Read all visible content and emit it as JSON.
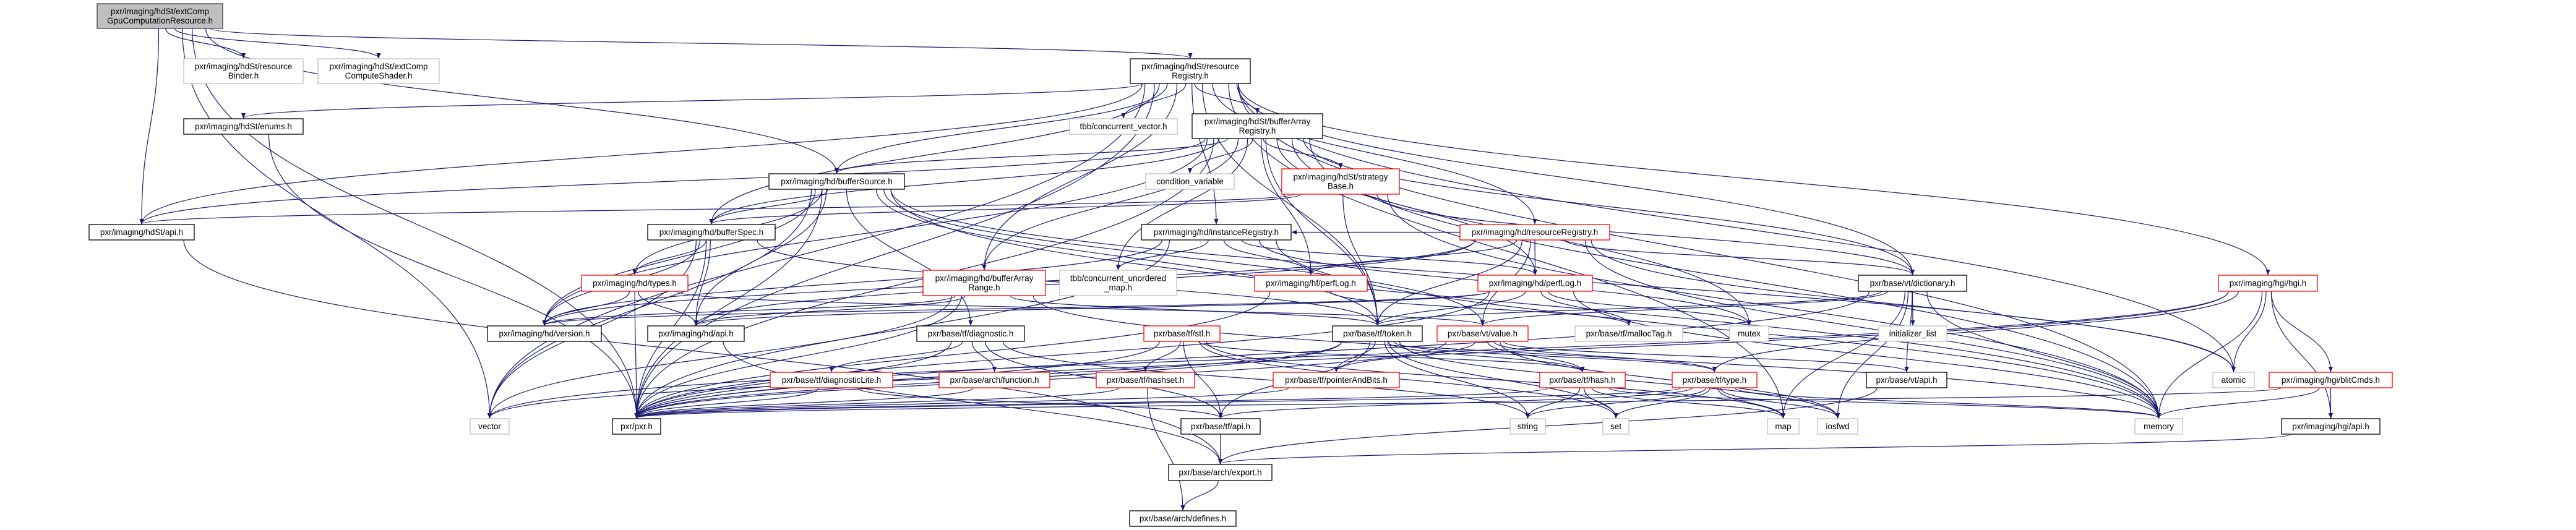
{
  "colors": {
    "edge": "#191970",
    "main_fill": "#bfbfbf",
    "main_border": "#404040",
    "documented_border": "#000000",
    "truncated_border": "#ff0000",
    "undocumented_border": "#bfbfbf"
  },
  "nodes": [
    {
      "id": "main",
      "lines": [
        "pxr/imaging/hdSt/extComp",
        "GpuComputationResource.h"
      ],
      "kind": "main"
    },
    {
      "id": "resourceBinder",
      "lines": [
        "pxr/imaging/hdSt/resource",
        "Binder.h"
      ],
      "kind": "undocumented"
    },
    {
      "id": "extCompComputeShader",
      "lines": [
        "pxr/imaging/hdSt/extComp",
        "ComputeShader.h"
      ],
      "kind": "undocumented"
    },
    {
      "id": "hdSt_resourceRegistry",
      "lines": [
        "pxr/imaging/hdSt/resource",
        "Registry.h"
      ],
      "kind": "documented"
    },
    {
      "id": "hdSt_enums",
      "lines": [
        "pxr/imaging/hdSt/enums.h"
      ],
      "kind": "documented"
    },
    {
      "id": "tbb_cv",
      "lines": [
        "tbb/concurrent_vector.h"
      ],
      "kind": "undocumented"
    },
    {
      "id": "bufferArrayRegistry",
      "lines": [
        "pxr/imaging/hdSt/bufferArray",
        "Registry.h"
      ],
      "kind": "documented"
    },
    {
      "id": "bufferSource",
      "lines": [
        "pxr/imaging/hd/bufferSource.h"
      ],
      "kind": "documented"
    },
    {
      "id": "condition_variable",
      "lines": [
        "condition_variable"
      ],
      "kind": "undocumented"
    },
    {
      "id": "strategyBase",
      "lines": [
        "pxr/imaging/hdSt/strategy",
        "Base.h"
      ],
      "kind": "truncated"
    },
    {
      "id": "hdSt_api",
      "lines": [
        "pxr/imaging/hdSt/api.h"
      ],
      "kind": "documented"
    },
    {
      "id": "bufferSpec",
      "lines": [
        "pxr/imaging/hd/bufferSpec.h"
      ],
      "kind": "documented"
    },
    {
      "id": "instanceRegistry",
      "lines": [
        "pxr/imaging/hd/instanceRegistry.h"
      ],
      "kind": "documented"
    },
    {
      "id": "hd_resourceRegistry",
      "lines": [
        "pxr/imaging/hd/resourceRegistry.h"
      ],
      "kind": "truncated"
    },
    {
      "id": "types",
      "lines": [
        "pxr/imaging/hd/types.h"
      ],
      "kind": "truncated"
    },
    {
      "id": "bufferArrayRange",
      "lines": [
        "pxr/imaging/hd/bufferArray",
        "Range.h"
      ],
      "kind": "truncated"
    },
    {
      "id": "tbb_cum",
      "lines": [
        "tbb/concurrent_unordered",
        "_map.h"
      ],
      "kind": "undocumented"
    },
    {
      "id": "hf_perfLog",
      "lines": [
        "pxr/imaging/hf/perfLog.h"
      ],
      "kind": "truncated"
    },
    {
      "id": "hd_perfLog",
      "lines": [
        "pxr/imaging/hd/perfLog.h"
      ],
      "kind": "truncated"
    },
    {
      "id": "vt_dictionary",
      "lines": [
        "pxr/base/vt/dictionary.h"
      ],
      "kind": "documented"
    },
    {
      "id": "hgi",
      "lines": [
        "pxr/imaging/hgi/hgi.h"
      ],
      "kind": "truncated"
    },
    {
      "id": "hd_version",
      "lines": [
        "pxr/imaging/hd/version.h"
      ],
      "kind": "documented"
    },
    {
      "id": "hd_api",
      "lines": [
        "pxr/imaging/hd/api.h"
      ],
      "kind": "documented"
    },
    {
      "id": "diagnostic",
      "lines": [
        "pxr/base/tf/diagnostic.h"
      ],
      "kind": "documented"
    },
    {
      "id": "stl",
      "lines": [
        "pxr/base/tf/stl.h"
      ],
      "kind": "truncated"
    },
    {
      "id": "token",
      "lines": [
        "pxr/base/tf/token.h"
      ],
      "kind": "documented"
    },
    {
      "id": "vt_value",
      "lines": [
        "pxr/base/vt/value.h"
      ],
      "kind": "truncated"
    },
    {
      "id": "mallocTag",
      "lines": [
        "pxr/base/tf/mallocTag.h"
      ],
      "kind": "undocumented"
    },
    {
      "id": "mutex",
      "lines": [
        "mutex"
      ],
      "kind": "undocumented"
    },
    {
      "id": "initializer_list",
      "lines": [
        "initializer_list"
      ],
      "kind": "undocumented"
    },
    {
      "id": "diagnosticLite",
      "lines": [
        "pxr/base/tf/diagnosticLite.h"
      ],
      "kind": "truncated"
    },
    {
      "id": "function",
      "lines": [
        "pxr/base/arch/function.h"
      ],
      "kind": "truncated"
    },
    {
      "id": "hashset",
      "lines": [
        "pxr/base/tf/hashset.h"
      ],
      "kind": "truncated"
    },
    {
      "id": "pointerAndBits",
      "lines": [
        "pxr/base/tf/pointerAndBits.h"
      ],
      "kind": "truncated"
    },
    {
      "id": "hash",
      "lines": [
        "pxr/base/tf/hash.h"
      ],
      "kind": "truncated"
    },
    {
      "id": "type",
      "lines": [
        "pxr/base/tf/type.h"
      ],
      "kind": "truncated"
    },
    {
      "id": "vt_api",
      "lines": [
        "pxr/base/vt/api.h"
      ],
      "kind": "documented"
    },
    {
      "id": "atomic",
      "lines": [
        "atomic"
      ],
      "kind": "undocumented"
    },
    {
      "id": "blitCmds",
      "lines": [
        "pxr/imaging/hgi/blitCmds.h"
      ],
      "kind": "truncated"
    },
    {
      "id": "vector",
      "lines": [
        "vector"
      ],
      "kind": "undocumented"
    },
    {
      "id": "pxr",
      "lines": [
        "pxr/pxr.h"
      ],
      "kind": "documented"
    },
    {
      "id": "tf_api",
      "lines": [
        "pxr/base/tf/api.h"
      ],
      "kind": "documented"
    },
    {
      "id": "string",
      "lines": [
        "string"
      ],
      "kind": "undocumented"
    },
    {
      "id": "set",
      "lines": [
        "set"
      ],
      "kind": "undocumented"
    },
    {
      "id": "map",
      "lines": [
        "map"
      ],
      "kind": "undocumented"
    },
    {
      "id": "iosfwd",
      "lines": [
        "iosfwd"
      ],
      "kind": "undocumented"
    },
    {
      "id": "memory",
      "lines": [
        "memory"
      ],
      "kind": "undocumented"
    },
    {
      "id": "hgi_api",
      "lines": [
        "pxr/imaging/hgi/api.h"
      ],
      "kind": "documented"
    },
    {
      "id": "export",
      "lines": [
        "pxr/base/arch/export.h"
      ],
      "kind": "documented"
    },
    {
      "id": "defines",
      "lines": [
        "pxr/base/arch/defines.h"
      ],
      "kind": "documented"
    }
  ],
  "edges": [
    [
      "main",
      "resourceBinder"
    ],
    [
      "main",
      "extCompComputeShader"
    ],
    [
      "main",
      "hdSt_resourceRegistry"
    ],
    [
      "main",
      "hdSt_api"
    ],
    [
      "main",
      "vector"
    ],
    [
      "main",
      "pxr"
    ],
    [
      "main",
      "bufferSource"
    ],
    [
      "hdSt_resourceRegistry",
      "hdSt_api"
    ],
    [
      "hdSt_resourceRegistry",
      "hdSt_enums"
    ],
    [
      "hdSt_resourceRegistry",
      "tbb_cv"
    ],
    [
      "hdSt_resourceRegistry",
      "bufferArrayRegistry"
    ],
    [
      "hdSt_resourceRegistry",
      "bufferSource"
    ],
    [
      "hdSt_resourceRegistry",
      "bufferSpec"
    ],
    [
      "hdSt_resourceRegistry",
      "bufferArrayRange"
    ],
    [
      "hdSt_resourceRegistry",
      "instanceRegistry"
    ],
    [
      "hdSt_resourceRegistry",
      "hd_resourceRegistry"
    ],
    [
      "hdSt_resourceRegistry",
      "vt_dictionary"
    ],
    [
      "hdSt_resourceRegistry",
      "hgi"
    ],
    [
      "hdSt_resourceRegistry",
      "atomic"
    ],
    [
      "hdSt_resourceRegistry",
      "memory"
    ],
    [
      "hdSt_resourceRegistry",
      "map"
    ],
    [
      "hdSt_resourceRegistry",
      "pxr"
    ],
    [
      "hdSt_resourceRegistry",
      "vector"
    ],
    [
      "hdSt_resourceRegistry",
      "token"
    ],
    [
      "bufferArrayRegistry",
      "hdSt_api"
    ],
    [
      "bufferArrayRegistry",
      "strategyBase"
    ],
    [
      "bufferArrayRegistry",
      "condition_variable"
    ],
    [
      "bufferArrayRegistry",
      "bufferArrayRange"
    ],
    [
      "bufferArrayRegistry",
      "bufferSpec"
    ],
    [
      "bufferArrayRegistry",
      "bufferSource"
    ],
    [
      "bufferArrayRegistry",
      "hd_perfLog"
    ],
    [
      "bufferArrayRegistry",
      "hf_perfLog"
    ],
    [
      "bufferArrayRegistry",
      "token"
    ],
    [
      "bufferArrayRegistry",
      "vt_dictionary"
    ],
    [
      "bufferArrayRegistry",
      "mutex"
    ],
    [
      "bufferArrayRegistry",
      "tbb_cum"
    ],
    [
      "bufferArrayRegistry",
      "memory"
    ],
    [
      "bufferArrayRegistry",
      "pxr"
    ],
    [
      "bufferArrayRegistry",
      "hd_version"
    ],
    [
      "strategyBase",
      "hdSt_api"
    ],
    [
      "strategyBase",
      "bufferSpec"
    ],
    [
      "strategyBase",
      "token"
    ],
    [
      "strategyBase",
      "vt_dictionary"
    ],
    [
      "strategyBase",
      "memory"
    ],
    [
      "bufferSource",
      "hd_api"
    ],
    [
      "bufferSource",
      "hd_version"
    ],
    [
      "bufferSource",
      "bufferSpec"
    ],
    [
      "bufferSource",
      "types"
    ],
    [
      "bufferSource",
      "diagnostic"
    ],
    [
      "bufferSource",
      "token"
    ],
    [
      "bufferSource",
      "vt_value"
    ],
    [
      "bufferSource",
      "pxr"
    ],
    [
      "bufferSource",
      "vector"
    ],
    [
      "bufferSource",
      "memory"
    ],
    [
      "bufferSource",
      "atomic"
    ],
    [
      "bufferSpec",
      "hd_api"
    ],
    [
      "bufferSpec",
      "hd_version"
    ],
    [
      "bufferSpec",
      "types"
    ],
    [
      "bufferSpec",
      "token"
    ],
    [
      "bufferSpec",
      "pxr"
    ],
    [
      "bufferSpec",
      "vector"
    ],
    [
      "types",
      "hd_api"
    ],
    [
      "types",
      "hd_version"
    ],
    [
      "types",
      "pxr"
    ],
    [
      "types",
      "vt_value"
    ],
    [
      "hdSt_enums",
      "pxr"
    ],
    [
      "hdSt_api",
      "export"
    ],
    [
      "instanceRegistry",
      "hd_version"
    ],
    [
      "instanceRegistry",
      "hd_perfLog"
    ],
    [
      "instanceRegistry",
      "hf_perfLog"
    ],
    [
      "instanceRegistry",
      "tbb_cum"
    ],
    [
      "instanceRegistry",
      "pxr"
    ],
    [
      "instanceRegistry",
      "memory"
    ],
    [
      "instanceRegistry",
      "mutex"
    ],
    [
      "hd_resourceRegistry",
      "hd_api"
    ],
    [
      "hd_resourceRegistry",
      "hd_version"
    ],
    [
      "hd_resourceRegistry",
      "hd_perfLog"
    ],
    [
      "hd_resourceRegistry",
      "hf_perfLog"
    ],
    [
      "hd_resourceRegistry",
      "instanceRegistry"
    ],
    [
      "hd_resourceRegistry",
      "token"
    ],
    [
      "hd_resourceRegistry",
      "vt_value"
    ],
    [
      "hd_resourceRegistry",
      "vt_dictionary"
    ],
    [
      "hd_resourceRegistry",
      "memory"
    ],
    [
      "hd_resourceRegistry",
      "atomic"
    ],
    [
      "hf_perfLog",
      "mallocTag"
    ],
    [
      "hf_perfLog",
      "pxr"
    ],
    [
      "hd_perfLog",
      "hd_api"
    ],
    [
      "hd_perfLog",
      "hd_version"
    ],
    [
      "hd_perfLog",
      "token"
    ],
    [
      "hd_perfLog",
      "mallocTag"
    ],
    [
      "hd_perfLog",
      "mutex"
    ],
    [
      "hd_perfLog",
      "pxr"
    ],
    [
      "hd_perfLog",
      "memory"
    ],
    [
      "bufferArrayRange",
      "hd_api"
    ],
    [
      "bufferArrayRange",
      "hd_version"
    ],
    [
      "bufferArrayRange",
      "pxr"
    ],
    [
      "bufferArrayRange",
      "vector"
    ],
    [
      "bufferArrayRange",
      "memory"
    ],
    [
      "bufferArrayRange",
      "token"
    ],
    [
      "hd_api",
      "export"
    ],
    [
      "diagnostic",
      "diagnosticLite"
    ],
    [
      "diagnostic",
      "function"
    ],
    [
      "diagnostic",
      "tf_api"
    ],
    [
      "diagnostic",
      "pxr"
    ],
    [
      "diagnostic",
      "string"
    ],
    [
      "stl",
      "hashset"
    ],
    [
      "stl",
      "tf_api"
    ],
    [
      "stl",
      "pxr"
    ],
    [
      "stl",
      "hash"
    ],
    [
      "stl",
      "map"
    ],
    [
      "stl",
      "set"
    ],
    [
      "token",
      "pointerAndBits"
    ],
    [
      "token",
      "hash"
    ],
    [
      "token",
      "tf_api"
    ],
    [
      "token",
      "string"
    ],
    [
      "token",
      "set"
    ],
    [
      "token",
      "iosfwd"
    ],
    [
      "token",
      "type"
    ],
    [
      "token",
      "pxr"
    ],
    [
      "token",
      "vector"
    ],
    [
      "vt_value",
      "pointerAndBits"
    ],
    [
      "vt_value",
      "vt_api"
    ],
    [
      "vt_value",
      "type"
    ],
    [
      "vt_value",
      "hash"
    ],
    [
      "vt_value",
      "iosfwd"
    ],
    [
      "vt_value",
      "pxr"
    ],
    [
      "diagnosticLite",
      "tf_api"
    ],
    [
      "diagnosticLite",
      "pxr"
    ],
    [
      "function",
      "pxr"
    ],
    [
      "hashset",
      "defines"
    ],
    [
      "hashset",
      "pxr"
    ],
    [
      "pointerAndBits",
      "pxr"
    ],
    [
      "hash",
      "pxr"
    ],
    [
      "hash",
      "string"
    ],
    [
      "hash",
      "set"
    ],
    [
      "hash",
      "map"
    ],
    [
      "hash",
      "memory"
    ],
    [
      "type",
      "tf_api"
    ],
    [
      "type",
      "pxr"
    ],
    [
      "type",
      "set"
    ],
    [
      "type",
      "string"
    ],
    [
      "type",
      "map"
    ],
    [
      "type",
      "iosfwd"
    ],
    [
      "type",
      "memory"
    ],
    [
      "vt_dictionary",
      "vt_api"
    ],
    [
      "vt_dictionary",
      "vt_value"
    ],
    [
      "vt_dictionary",
      "initializer_list"
    ],
    [
      "vt_dictionary",
      "iosfwd"
    ],
    [
      "vt_dictionary",
      "memory"
    ],
    [
      "vt_dictionary",
      "map"
    ],
    [
      "vt_dictionary",
      "pxr"
    ],
    [
      "vt_dictionary",
      "token"
    ],
    [
      "vt_api",
      "export"
    ],
    [
      "hgi",
      "hgi_api"
    ],
    [
      "hgi",
      "blitCmds"
    ],
    [
      "hgi",
      "atomic"
    ],
    [
      "hgi",
      "memory"
    ],
    [
      "hgi",
      "pxr"
    ],
    [
      "hgi",
      "type"
    ],
    [
      "hgi",
      "vector"
    ],
    [
      "blitCmds",
      "hgi_api"
    ],
    [
      "blitCmds",
      "memory"
    ],
    [
      "blitCmds",
      "pxr"
    ],
    [
      "hgi_api",
      "export"
    ],
    [
      "tf_api",
      "export"
    ],
    [
      "export",
      "defines"
    ]
  ]
}
